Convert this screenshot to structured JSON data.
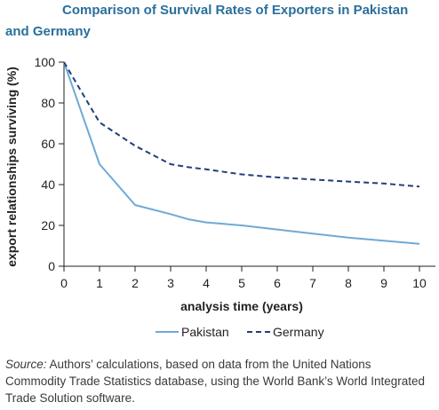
{
  "title": {
    "line1": "Comparison of Survival Rates of Exporters in Pakistan",
    "line2": "and Germany"
  },
  "source": {
    "label": "Source:",
    "text": " Authors’ calculations, based on data from the United Nations Commodity Trade Statistics database, using the World Bank’s World Integrated Trade Solution software."
  },
  "colors": {
    "pakistan": "#6fa9d6",
    "germany": "#1f3f7a",
    "axis": "#231f20"
  },
  "chart_data": {
    "type": "line",
    "title": "Comparison of Survival Rates of Exporters in Pakistan and Germany",
    "xlabel": "analysis time (years)",
    "ylabel": "export relationships surviving (%)",
    "xlim": [
      0,
      10
    ],
    "ylim": [
      0,
      100
    ],
    "xticks": [
      0,
      1,
      2,
      3,
      4,
      5,
      6,
      7,
      8,
      9,
      10
    ],
    "yticks": [
      0,
      20,
      40,
      60,
      80,
      100
    ],
    "grid": false,
    "legend": "bottom",
    "series": [
      {
        "name": "Pakistan",
        "style": "solid",
        "x": [
          0,
          1,
          1.5,
          2,
          3,
          3.5,
          4,
          5,
          6,
          7,
          8,
          9,
          10
        ],
        "y": [
          100,
          50,
          40,
          30,
          25.5,
          23,
          21.5,
          20,
          18,
          16,
          14,
          12.5,
          11
        ]
      },
      {
        "name": "Germany",
        "style": "dashed",
        "x": [
          0,
          1,
          2,
          3,
          3.5,
          4,
          5,
          6,
          7,
          8,
          9,
          10
        ],
        "y": [
          100,
          70.5,
          59,
          50,
          48.5,
          47.5,
          45,
          43.5,
          42.5,
          41.5,
          40.5,
          39
        ]
      }
    ]
  }
}
